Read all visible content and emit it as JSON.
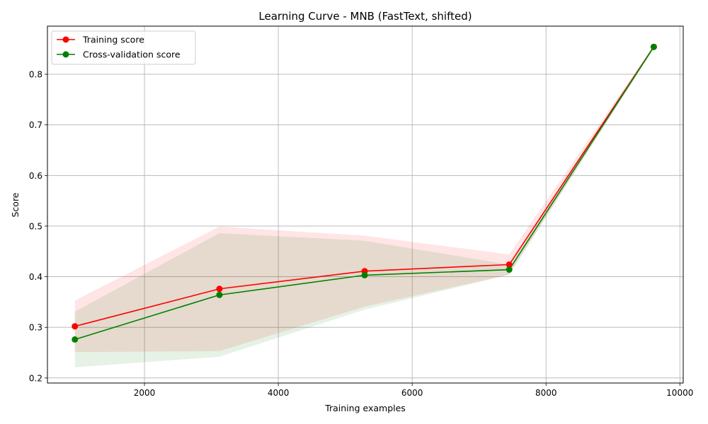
{
  "chart_data": {
    "type": "line",
    "title": "Learning Curve - MNB (FastText, shifted)",
    "xlabel": "Training examples",
    "ylabel": "Score",
    "xlim": [
      550,
      10050
    ],
    "ylim": [
      0.19,
      0.895
    ],
    "xticks": [
      2000,
      4000,
      6000,
      8000,
      10000
    ],
    "yticks": [
      0.2,
      0.3,
      0.4,
      0.5,
      0.6,
      0.7,
      0.8
    ],
    "grid": true,
    "legend_position": "top-left",
    "x": [
      960,
      3120,
      5290,
      7450,
      9610
    ],
    "series": [
      {
        "name": "Training score",
        "color": "#ff0000",
        "values": [
          0.302,
          0.376,
          0.411,
          0.424,
          0.854
        ],
        "band_upper": [
          0.353,
          0.499,
          0.481,
          0.444,
          0.857
        ],
        "band_lower": [
          0.251,
          0.253,
          0.341,
          0.404,
          0.851
        ]
      },
      {
        "name": "Cross-validation score",
        "color": "#008000",
        "values": [
          0.276,
          0.364,
          0.403,
          0.414,
          0.854
        ],
        "band_upper": [
          0.331,
          0.486,
          0.471,
          0.424,
          0.857
        ],
        "band_lower": [
          0.221,
          0.242,
          0.335,
          0.404,
          0.851
        ]
      }
    ]
  }
}
